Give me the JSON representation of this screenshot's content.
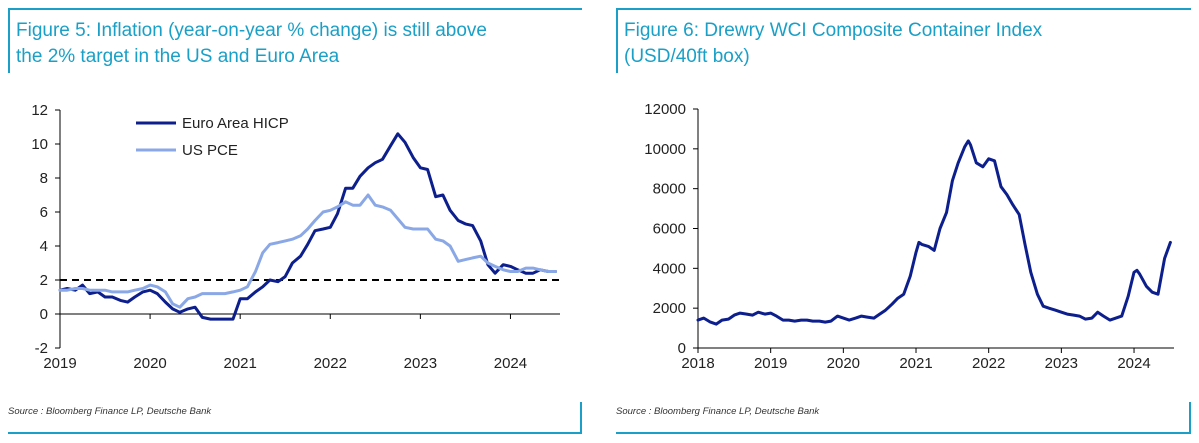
{
  "left": {
    "title_line1": "Figure 5: Inflation (year-on-year % change) is still above",
    "title_line2": "the 2% target in the US and Euro Area",
    "source": "Source : Bloomberg Finance LP, Deutsche Bank"
  },
  "right": {
    "title_line1": "Figure 6: Drewry WCI Composite Container Index",
    "title_line2": "(USD/40ft box)",
    "source": "Source : Bloomberg Finance LP, Deutsche Bank"
  },
  "chart_data": [
    {
      "type": "line",
      "title": "Figure 5: Inflation (year-on-year % change) is still above the 2% target in the US and Euro Area",
      "xlabel": "",
      "ylabel": "",
      "xlim": [
        2019,
        2024.55
      ],
      "ylim": [
        -2,
        12
      ],
      "yticks": [
        -2,
        0,
        2,
        4,
        6,
        8,
        10,
        12
      ],
      "xticks": [
        2019,
        2020,
        2021,
        2022,
        2023,
        2024
      ],
      "grid": false,
      "legend_position": "top-left",
      "reference_line": {
        "y": 2,
        "style": "dashed",
        "color": "#000000"
      },
      "series": [
        {
          "name": "Euro Area HICP",
          "color": "#0c1f8c",
          "x": [
            2019.0,
            2019.08,
            2019.17,
            2019.25,
            2019.33,
            2019.42,
            2019.5,
            2019.58,
            2019.67,
            2019.75,
            2019.83,
            2019.92,
            2020.0,
            2020.08,
            2020.17,
            2020.25,
            2020.33,
            2020.42,
            2020.5,
            2020.58,
            2020.67,
            2020.75,
            2020.83,
            2020.92,
            2021.0,
            2021.08,
            2021.17,
            2021.25,
            2021.33,
            2021.42,
            2021.5,
            2021.58,
            2021.67,
            2021.75,
            2021.83,
            2021.92,
            2022.0,
            2022.08,
            2022.17,
            2022.25,
            2022.33,
            2022.42,
            2022.5,
            2022.58,
            2022.67,
            2022.75,
            2022.83,
            2022.92,
            2023.0,
            2023.08,
            2023.17,
            2023.25,
            2023.33,
            2023.42,
            2023.5,
            2023.58,
            2023.67,
            2023.75,
            2023.83,
            2023.92,
            2024.0,
            2024.08,
            2024.17,
            2024.25,
            2024.33,
            2024.42,
            2024.5
          ],
          "values": [
            1.4,
            1.5,
            1.4,
            1.7,
            1.2,
            1.3,
            1.0,
            1.0,
            0.8,
            0.7,
            1.0,
            1.3,
            1.4,
            1.2,
            0.7,
            0.3,
            0.1,
            0.3,
            0.4,
            -0.2,
            -0.3,
            -0.3,
            -0.3,
            -0.3,
            0.9,
            0.9,
            1.3,
            1.6,
            2.0,
            1.9,
            2.2,
            3.0,
            3.4,
            4.1,
            4.9,
            5.0,
            5.1,
            5.9,
            7.4,
            7.4,
            8.1,
            8.6,
            8.9,
            9.1,
            9.9,
            10.6,
            10.1,
            9.2,
            8.6,
            8.5,
            6.9,
            7.0,
            6.1,
            5.5,
            5.3,
            5.2,
            4.3,
            2.9,
            2.4,
            2.9,
            2.8,
            2.6,
            2.4,
            2.4,
            2.6,
            2.5,
            2.5
          ]
        },
        {
          "name": "US PCE",
          "color": "#8aa8e6",
          "x": [
            2019.0,
            2019.08,
            2019.17,
            2019.25,
            2019.33,
            2019.42,
            2019.5,
            2019.58,
            2019.67,
            2019.75,
            2019.83,
            2019.92,
            2020.0,
            2020.08,
            2020.17,
            2020.25,
            2020.33,
            2020.42,
            2020.5,
            2020.58,
            2020.67,
            2020.75,
            2020.83,
            2020.92,
            2021.0,
            2021.08,
            2021.17,
            2021.25,
            2021.33,
            2021.42,
            2021.5,
            2021.58,
            2021.67,
            2021.75,
            2021.83,
            2021.92,
            2022.0,
            2022.08,
            2022.17,
            2022.25,
            2022.33,
            2022.42,
            2022.5,
            2022.58,
            2022.67,
            2022.75,
            2022.83,
            2022.92,
            2023.0,
            2023.08,
            2023.17,
            2023.25,
            2023.33,
            2023.42,
            2023.5,
            2023.58,
            2023.67,
            2023.75,
            2023.83,
            2023.92,
            2024.0,
            2024.08,
            2024.17,
            2024.25,
            2024.33,
            2024.42,
            2024.5
          ],
          "values": [
            1.4,
            1.4,
            1.5,
            1.5,
            1.4,
            1.4,
            1.4,
            1.3,
            1.3,
            1.3,
            1.4,
            1.5,
            1.7,
            1.6,
            1.3,
            0.6,
            0.4,
            0.9,
            1.0,
            1.2,
            1.2,
            1.2,
            1.2,
            1.3,
            1.4,
            1.6,
            2.5,
            3.6,
            4.1,
            4.2,
            4.3,
            4.4,
            4.6,
            5.0,
            5.5,
            6.0,
            6.1,
            6.3,
            6.6,
            6.4,
            6.4,
            7.0,
            6.4,
            6.3,
            6.1,
            5.6,
            5.1,
            5.0,
            5.0,
            5.0,
            4.4,
            4.3,
            4.0,
            3.1,
            3.2,
            3.3,
            3.4,
            3.0,
            2.8,
            2.6,
            2.5,
            2.5,
            2.7,
            2.7,
            2.6,
            2.5,
            2.5
          ]
        }
      ]
    },
    {
      "type": "line",
      "title": "Figure 6: Drewry WCI Composite Container Index (USD/40ft box)",
      "xlabel": "",
      "ylabel": "",
      "xlim": [
        2018,
        2024.55
      ],
      "ylim": [
        0,
        12000
      ],
      "yticks": [
        0,
        2000,
        4000,
        6000,
        8000,
        10000,
        12000
      ],
      "xticks": [
        2018,
        2019,
        2020,
        2021,
        2022,
        2023,
        2024
      ],
      "grid": false,
      "series": [
        {
          "color": "#0c1f8c",
          "x": [
            2018.0,
            2018.08,
            2018.17,
            2018.25,
            2018.33,
            2018.42,
            2018.5,
            2018.58,
            2018.67,
            2018.75,
            2018.83,
            2018.92,
            2019.0,
            2019.08,
            2019.17,
            2019.25,
            2019.33,
            2019.42,
            2019.5,
            2019.58,
            2019.67,
            2019.75,
            2019.83,
            2019.92,
            2020.0,
            2020.08,
            2020.17,
            2020.25,
            2020.33,
            2020.42,
            2020.5,
            2020.58,
            2020.67,
            2020.75,
            2020.83,
            2020.92,
            2021.0,
            2021.04,
            2021.08,
            2021.17,
            2021.25,
            2021.33,
            2021.42,
            2021.5,
            2021.58,
            2021.67,
            2021.72,
            2021.75,
            2021.83,
            2021.92,
            2022.0,
            2022.08,
            2022.17,
            2022.25,
            2022.33,
            2022.42,
            2022.5,
            2022.58,
            2022.67,
            2022.75,
            2022.83,
            2022.92,
            2023.0,
            2023.08,
            2023.17,
            2023.25,
            2023.33,
            2023.42,
            2023.5,
            2023.58,
            2023.67,
            2023.75,
            2023.83,
            2023.92,
            2024.0,
            2024.04,
            2024.08,
            2024.17,
            2024.25,
            2024.33,
            2024.42,
            2024.5
          ],
          "values": [
            1400,
            1500,
            1300,
            1200,
            1400,
            1450,
            1650,
            1750,
            1700,
            1650,
            1800,
            1700,
            1750,
            1600,
            1400,
            1400,
            1350,
            1400,
            1400,
            1350,
            1350,
            1300,
            1350,
            1600,
            1500,
            1400,
            1500,
            1600,
            1550,
            1500,
            1700,
            1900,
            2200,
            2500,
            2700,
            3600,
            4800,
            5300,
            5200,
            5100,
            4900,
            6000,
            6800,
            8400,
            9300,
            10100,
            10400,
            10200,
            9300,
            9100,
            9500,
            9400,
            8100,
            7700,
            7200,
            6700,
            5200,
            3800,
            2700,
            2100,
            2000,
            1900,
            1800,
            1700,
            1650,
            1600,
            1450,
            1500,
            1800,
            1600,
            1400,
            1500,
            1600,
            2600,
            3800,
            3900,
            3700,
            3100,
            2800,
            2700,
            4500,
            5300
          ]
        }
      ]
    }
  ]
}
